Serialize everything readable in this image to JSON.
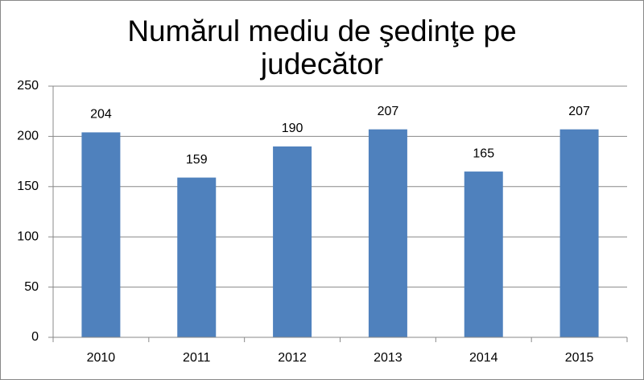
{
  "chart_data": {
    "type": "bar",
    "title": "Numărul mediu de şedinţe pe judecător",
    "categories": [
      "2010",
      "2011",
      "2012",
      "2013",
      "2014",
      "2015"
    ],
    "values": [
      204,
      159,
      190,
      207,
      165,
      207
    ],
    "color": "#4f81bd",
    "ylim": [
      0,
      250
    ],
    "yticks": [
      0,
      50,
      100,
      150,
      200,
      250
    ],
    "grid": true
  }
}
